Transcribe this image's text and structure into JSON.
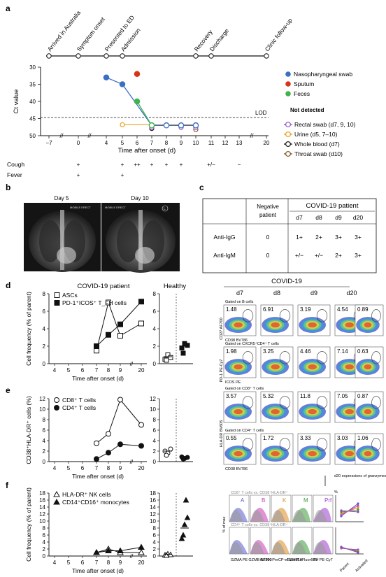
{
  "panel_a": {
    "label": "a",
    "events": [
      {
        "label": "Arrived in Australia",
        "day": -7
      },
      {
        "label": "Symptom onset",
        "day": 0
      },
      {
        "label": "Presented to ED",
        "day": 4
      },
      {
        "label": "Admission",
        "day": 5
      },
      {
        "label": "Recovery",
        "day": 10
      },
      {
        "label": "Discharge",
        "day": 11
      },
      {
        "label": "Clinic follow-up",
        "day": 20
      }
    ],
    "y_axis_label": "Ct value",
    "y_ticks": [
      "30",
      "35",
      "40",
      "45",
      "50"
    ],
    "x_ticks": [
      "−7",
      "0",
      "4",
      "5",
      "6",
      "7",
      "8",
      "9",
      "10",
      "11",
      "12",
      "13",
      "20"
    ],
    "x_label": "Time after onset (d)",
    "lod_label": "LOD",
    "legend": [
      {
        "label": "Nasopharyngeal swab",
        "color": "#3a6fc4"
      },
      {
        "label": "Sputum",
        "color": "#d9341a"
      },
      {
        "label": "Feces",
        "color": "#3fb34f"
      }
    ],
    "not_detected_title": "Not detected",
    "not_detected": [
      {
        "label": "Rectal swab (d7, 9, 10)",
        "color": "#9a5cc6"
      },
      {
        "label": "Urine (d5, 7–10)",
        "color": "#f0a020"
      },
      {
        "label": "Whole blood (d7)",
        "color": "#222222"
      },
      {
        "label": "Throat swab (d10)",
        "color": "#8a5a2b"
      }
    ],
    "symptoms": [
      {
        "name": "Cough",
        "marks": [
          "+",
          "+",
          "++",
          "+",
          "+",
          "+",
          "+/−",
          "−"
        ]
      },
      {
        "name": "Fever",
        "marks": [
          "+",
          "+"
        ]
      }
    ]
  },
  "panel_b": {
    "label": "b",
    "xray_titles": [
      "Day 5",
      "Day 10"
    ],
    "xray_stamp": "MOBILE ERECT",
    "xray_marker": "L"
  },
  "panel_c": {
    "label": "c",
    "header_neg": "Negative patient",
    "header_pos": "COVID-19 patient",
    "days": [
      "d7",
      "d8",
      "d9",
      "d20"
    ],
    "rows": [
      {
        "name": "Anti-IgG",
        "neg": "0",
        "vals": [
          "1+",
          "2+",
          "3+",
          "3+"
        ]
      },
      {
        "name": "Anti-IgM",
        "neg": "0",
        "vals": [
          "+/−",
          "+/−",
          "2+",
          "3+"
        ]
      }
    ]
  },
  "panel_d": {
    "label": "d",
    "title_left": "COVID-19 patient",
    "title_right": "Healthy",
    "legend": [
      "ASCs",
      "PD-1⁺ICOS⁺",
      "T_FH cells"
    ],
    "ylabel": "Cell frequency (% of parent)",
    "xlabel": "Time after onset (d)"
  },
  "panel_e": {
    "label": "e",
    "legend": [
      "CD8⁺ T cells",
      "CD4⁺ T cells"
    ],
    "ylabel": "CD38⁺HLA-DR⁺ cells (%)",
    "xlabel": "Time after onset (d)"
  },
  "panel_f": {
    "label": "f",
    "legend": [
      "HLA-DR⁺ NK cells",
      "CD14⁺CD16⁺ monocytes"
    ],
    "ylabel": "Cell frequency (% of parent)",
    "xlabel": "Time after onset (d)"
  },
  "flow": {
    "title": "COVID-19",
    "days": [
      "d7",
      "d8",
      "d9",
      "d20"
    ],
    "gate_labels": [
      "Gated on B cells",
      "Gated on CXCR5⁺CD4⁺ T cells",
      "Gated on CD8⁺ T cells",
      "Gated on CD4⁺ T cells"
    ],
    "row_values": [
      [
        "1.48",
        "6.91",
        "3.19",
        "4.54",
        "0.89"
      ],
      [
        "1.98",
        "3.25",
        "4.46",
        "7.14",
        "0.63"
      ],
      [
        "3.57",
        "5.32",
        "11.8",
        "7.05",
        "0.87"
      ],
      [
        "0.55",
        "1.72",
        "3.33",
        "3.03",
        "1.06"
      ]
    ],
    "axis_labels": [
      "CD27 AF700",
      "CD38 BV786",
      "PD-1 PE-Cy7",
      "ICOS PE",
      "HLA-DR BV605",
      "CD38 BV786"
    ],
    "histo_note": "d20 expressions of granzymes and perforin",
    "histo_row1": "CD8⁺ T cells vs. CD38⁺HLA-DR⁺",
    "histo_row2": "CD4⁺ T cells vs. CD38⁺HLA-DR⁺",
    "histo_letters": [
      "A",
      "B",
      "K",
      "M",
      "Prf"
    ],
    "histo_xlabels": [
      "GZMA PE",
      "GZMB AF700",
      "GZMK PerCP-eFluor710",
      "GZMM eFluor660",
      "Prf PE-Cy7"
    ],
    "histo_ylabel": "% of max",
    "mini_xlabels": [
      "Parent",
      "Activated"
    ],
    "mini_ylabel": "%"
  },
  "chart_data": [
    {
      "type": "line",
      "title": "Ct value",
      "xlabel": "Time after onset (d)",
      "ylabel": "Ct value",
      "ylim": [
        50,
        30
      ],
      "series": [
        {
          "name": "Nasopharyngeal swab",
          "x": [
            4,
            5,
            7,
            8,
            9,
            10
          ],
          "values": [
            33,
            35,
            47,
            47,
            47,
            47
          ]
        },
        {
          "name": "Sputum",
          "x": [
            6
          ],
          "values": [
            32
          ]
        },
        {
          "name": "Feces",
          "x": [
            6,
            7
          ],
          "values": [
            40,
            47
          ]
        }
      ]
    },
    {
      "type": "line",
      "title": "COVID-19 patient",
      "xlabel": "Time after onset (d)",
      "ylabel": "Cell frequency (% of parent)",
      "ylim": [
        0,
        8
      ],
      "series": [
        {
          "name": "ASCs",
          "x": [
            7,
            8,
            9,
            20
          ],
          "values": [
            1.5,
            7,
            3.2,
            4.6
          ]
        },
        {
          "name": "PD-1⁺ICOS⁺",
          "x": [
            7,
            8,
            9,
            20
          ],
          "values": [
            2,
            3.3,
            4.5,
            7.1
          ]
        }
      ]
    },
    {
      "type": "line",
      "xlabel": "Time after onset (d)",
      "ylabel": "CD38⁺HLA-DR⁺ cells (%)",
      "ylim": [
        0,
        12
      ],
      "series": [
        {
          "name": "CD8⁺ T cells",
          "x": [
            7,
            8,
            9,
            20
          ],
          "values": [
            3.5,
            5.3,
            11.8,
            7
          ]
        },
        {
          "name": "CD4⁺ T cells",
          "x": [
            7,
            8,
            9,
            20
          ],
          "values": [
            0.5,
            1.7,
            3.3,
            3
          ]
        }
      ]
    },
    {
      "type": "line",
      "xlabel": "Time after onset (d)",
      "ylabel": "Cell frequency (% of parent)",
      "ylim": [
        0,
        18
      ],
      "series": [
        {
          "name": "HLA-DR⁺ NK cells",
          "x": [
            7,
            8,
            9,
            20
          ],
          "values": [
            1,
            2,
            1,
            1
          ]
        },
        {
          "name": "CD14⁺CD16⁺ monocytes",
          "x": [
            7,
            8,
            9,
            20
          ],
          "values": [
            1,
            1.5,
            1.5,
            2.5
          ]
        }
      ]
    }
  ]
}
